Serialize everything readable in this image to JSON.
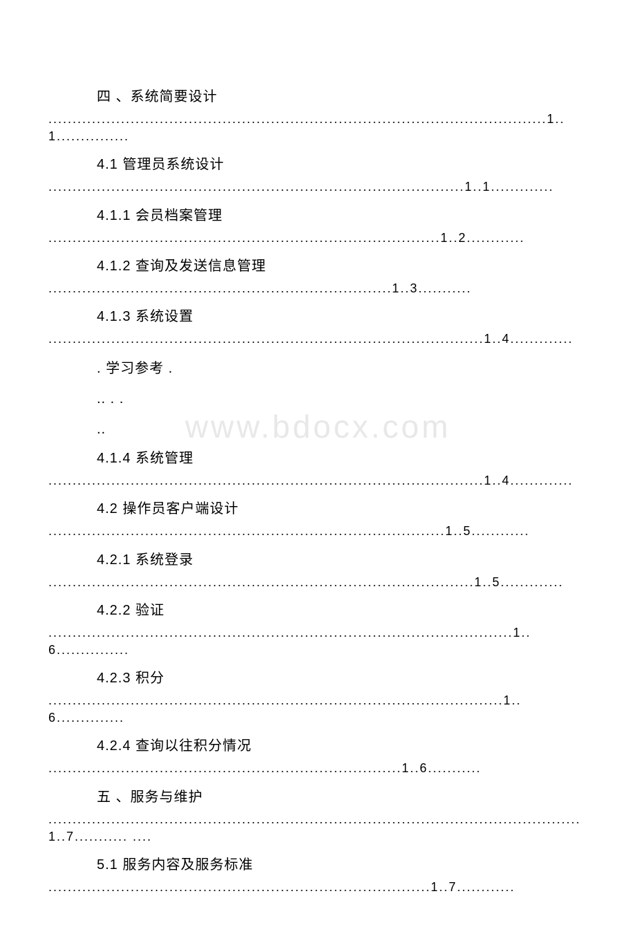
{
  "watermark": "www.bdocx.com",
  "toc": {
    "entries": [
      {
        "title": "四 、系统简要设计",
        "leader": ".......................................................................................................1..1..............."
      },
      {
        "title": "4.1 管理员系统设计",
        "leader": "......................................................................................1..1............."
      },
      {
        "title": "4.1.1 会员档案管理",
        "leader": ".................................................................................1..2............"
      },
      {
        "title": "4.1.2 查询及发送信息管理",
        "leader": ".......................................................................1..3..........."
      },
      {
        "title": "4.1.3 系统设置",
        "leader": "..........................................................................................1..4............."
      }
    ],
    "midLines": [
      ". 学习参考 .",
      ".. . .",
      ".."
    ],
    "entries2": [
      {
        "title": "4.1.4 系统管理",
        "leader": "..........................................................................................1..4............."
      },
      {
        "title": "4.2 操作员客户端设计",
        "leader": "..................................................................................1..5............"
      },
      {
        "title": "4.2.1 系统登录",
        "leader": "........................................................................................1..5............."
      },
      {
        "title": "4.2.2 验证",
        "leader": "................................................................................................1..6..............."
      },
      {
        "title": "4.2.3 积分",
        "leader": "..............................................................................................1..6.............."
      },
      {
        "title": "4.2.4 查询以往积分情况",
        "leader": ".........................................................................1..6..........."
      },
      {
        "title": "五 、服务与维护",
        "leader": "..............................................................................................................1..7...........\n...."
      },
      {
        "title": "5.1 服务内容及服务标准",
        "leader": "...............................................................................1..7............"
      }
    ]
  },
  "styles": {
    "background": "#ffffff",
    "text_color": "#000000",
    "watermark_color": "#e8e8e8",
    "title_fontsize": 20,
    "leader_fontsize": 18
  }
}
